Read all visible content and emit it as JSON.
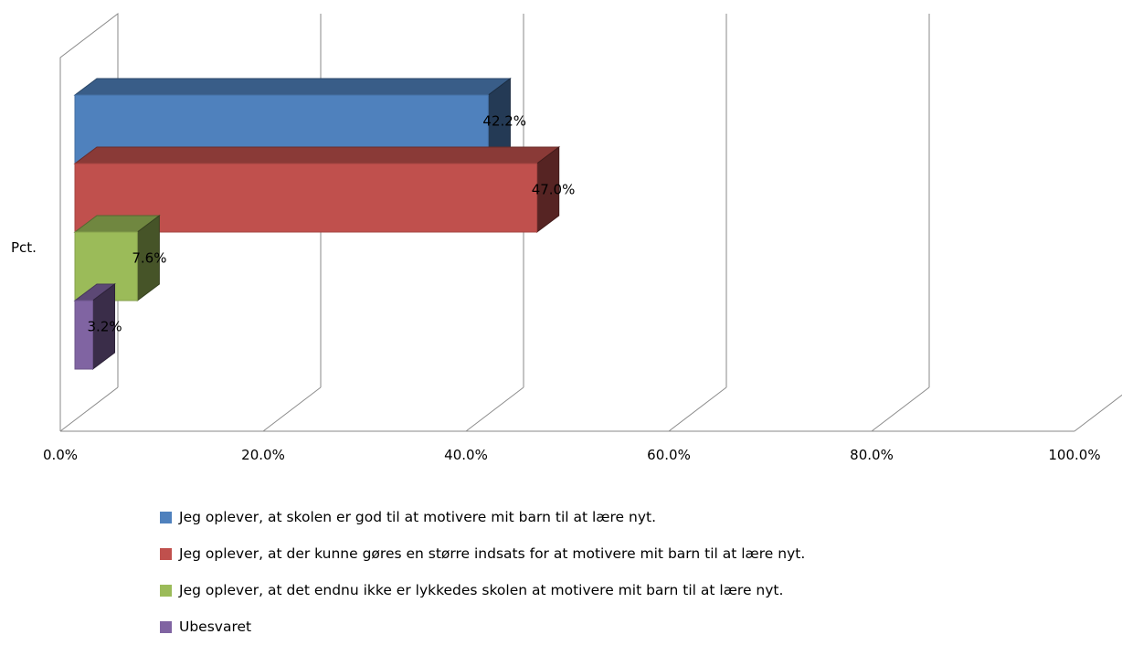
{
  "chart_data": {
    "type": "bar",
    "orientation": "horizontal",
    "three_d": true,
    "categories": [
      "Pct."
    ],
    "series": [
      {
        "name": "Jeg oplever, at skolen er god til at motivere mit barn til at lære nyt.",
        "value": 42.2,
        "label": "42.2%",
        "color": "#4F81BD"
      },
      {
        "name": "Jeg oplever, at der kunne gøres en større indsats for at motivere mit barn til at lære nyt.",
        "value": 47.0,
        "label": "47.0%",
        "color": "#C0504D"
      },
      {
        "name": "Jeg oplever, at det endnu ikke er lykkedes skolen at motivere mit barn til at lære nyt.",
        "value": 7.6,
        "label": "7.6%",
        "color": "#9BBB59"
      },
      {
        "name": "Ubesvaret",
        "value": 3.2,
        "label": "3.2%",
        "color": "#8064A2"
      }
    ],
    "xlim": [
      0,
      100
    ],
    "xticks": [
      "0.0%",
      "20.0%",
      "40.0%",
      "60.0%",
      "80.0%",
      "100.0%"
    ],
    "grid": true,
    "legend_position": "bottom",
    "title": "",
    "xlabel": "",
    "ylabel": ""
  }
}
